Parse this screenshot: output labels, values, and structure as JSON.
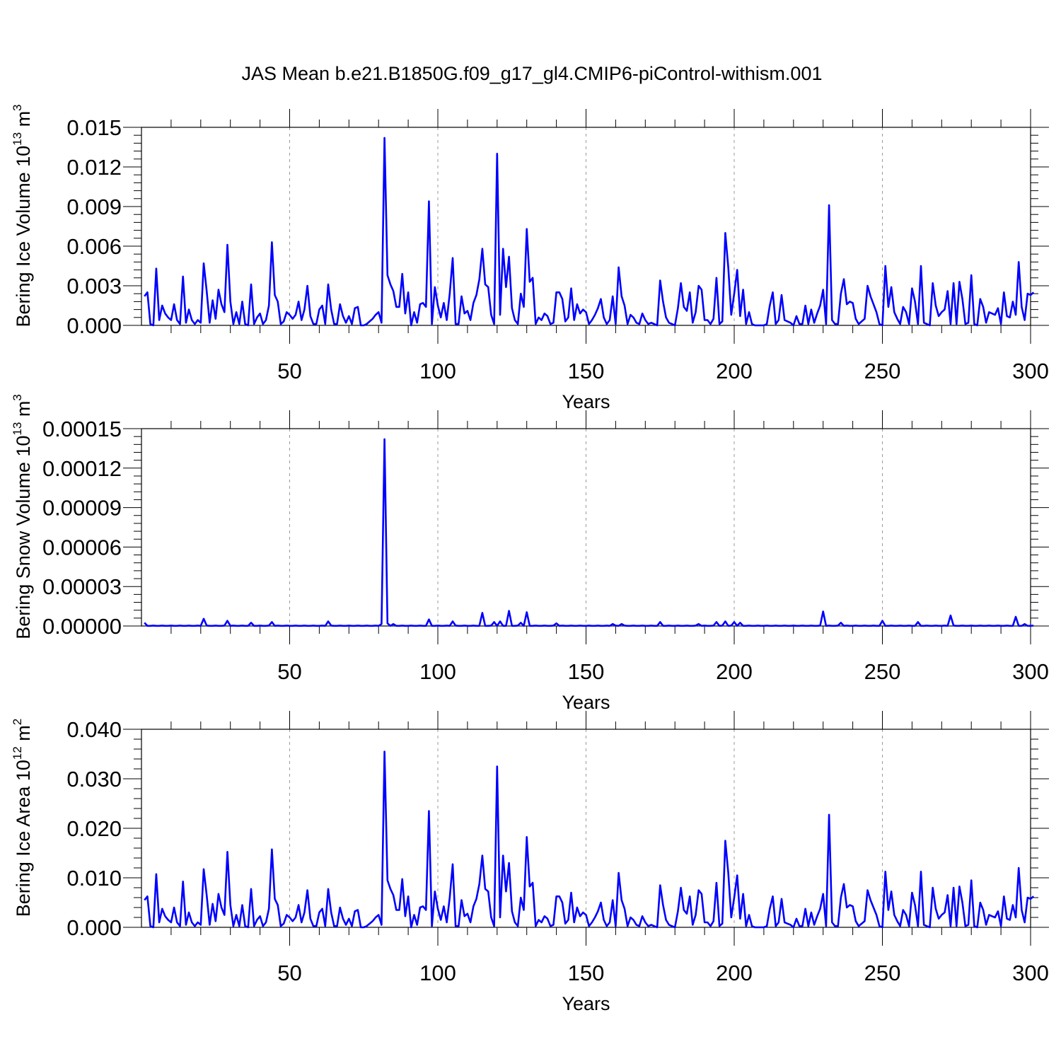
{
  "figure": {
    "title": "JAS Mean b.e21.B1850G.f09_g17_gl4.CMIP6-piControl-withism.001"
  },
  "colors": {
    "line": "#0000ff",
    "axis": "#000000",
    "grid": "#999999"
  },
  "chart_data": [
    {
      "type": "line",
      "title": "",
      "xlabel": "Years",
      "ylabel_main": "Bering Ice Volume 10",
      "ylabel_exp": "13",
      "ylabel_unit": " m",
      "ylabel_unit_exp": "3",
      "xlim": [
        0,
        300
      ],
      "ylim": [
        0,
        0.015
      ],
      "xticks": [
        50,
        100,
        150,
        200,
        250,
        300
      ],
      "yticks": [
        0.0,
        0.003,
        0.006,
        0.009,
        0.012,
        0.015
      ],
      "ytick_labels": [
        "0.000",
        "0.003",
        "0.006",
        "0.009",
        "0.012",
        "0.015"
      ],
      "grid_x": [
        50,
        100,
        150,
        200,
        250
      ],
      "series": [
        {
          "x_start": 1,
          "x_step": 1,
          "values": [
            0.0022,
            0.0025,
            0.0001,
            0.0,
            0.0043,
            0.0004,
            0.0015,
            0.0009,
            0.0006,
            0.0004,
            0.0016,
            0.0004,
            0.0001,
            0.0037,
            0.0002,
            0.0012,
            0.0004,
            0.0001,
            0.0004,
            0.0002,
            0.0047,
            0.0026,
            0.0002,
            0.0019,
            0.0005,
            0.0027,
            0.0016,
            0.001,
            0.0061,
            0.0018,
            0.0001,
            0.001,
            0.0001,
            0.0018,
            0.0001,
            0.0,
            0.0031,
            0.0001,
            0.0006,
            0.0009,
            0.0001,
            0.0004,
            0.0015,
            0.0063,
            0.0023,
            0.0018,
            0.0001,
            0.0003,
            0.001,
            0.0008,
            0.0005,
            0.0008,
            0.0018,
            0.0004,
            0.0012,
            0.003,
            0.0007,
            0.0001,
            0.0001,
            0.0012,
            0.0015,
            0.0001,
            0.0031,
            0.0012,
            0.0001,
            0.0001,
            0.0016,
            0.0007,
            0.0002,
            0.0007,
            0.0001,
            0.0013,
            0.0014,
            0.0,
            0.0,
            0.0001,
            0.0003,
            0.0005,
            0.0008,
            0.001,
            0.0002,
            0.0142,
            0.0038,
            0.0031,
            0.0026,
            0.0014,
            0.0014,
            0.0039,
            0.0009,
            0.0025,
            0.0,
            0.001,
            0.0002,
            0.0016,
            0.0017,
            0.0014,
            0.0094,
            0.0001,
            0.0029,
            0.0015,
            0.0006,
            0.0017,
            0.0004,
            0.0024,
            0.0051,
            0.0001,
            0.0001,
            0.0022,
            0.0009,
            0.0011,
            0.0004,
            0.0017,
            0.0023,
            0.0035,
            0.0058,
            0.0031,
            0.0029,
            0.0008,
            0.0001,
            0.013,
            0.0008,
            0.0058,
            0.0029,
            0.0052,
            0.0013,
            0.0004,
            0.0001,
            0.0024,
            0.0014,
            0.0073,
            0.0033,
            0.0036,
            0.0001,
            0.0006,
            0.0004,
            0.0009,
            0.0007,
            0.0001,
            0.0002,
            0.0025,
            0.0025,
            0.002,
            0.0003,
            0.0006,
            0.0028,
            0.0004,
            0.0016,
            0.0009,
            0.0012,
            0.001,
            0.0001,
            0.0004,
            0.0008,
            0.0013,
            0.002,
            0.0006,
            0.0001,
            0.0004,
            0.0022,
            0.0001,
            0.0044,
            0.0022,
            0.0015,
            0.0001,
            0.0008,
            0.0006,
            0.0002,
            0.0001,
            0.0009,
            0.0004,
            0.0001,
            0.0002,
            0.0001,
            0.0,
            0.0034,
            0.0018,
            0.0006,
            0.0002,
            0.0001,
            0.0,
            0.0013,
            0.0032,
            0.0014,
            0.0011,
            0.0025,
            0.0002,
            0.001,
            0.003,
            0.0027,
            0.0004,
            0.0004,
            0.0001,
            0.0005,
            0.0036,
            0.0001,
            0.0003,
            0.007,
            0.0044,
            0.0008,
            0.0024,
            0.0042,
            0.0007,
            0.0027,
            0.0001,
            0.001,
            0.0001,
            0.0,
            0.0,
            0.0,
            0.0,
            0.0001,
            0.0015,
            0.0025,
            0.0001,
            0.0004,
            0.0023,
            0.0004,
            0.0003,
            0.0002,
            0.0,
            0.0007,
            0.0001,
            0.0001,
            0.0015,
            0.0001,
            0.0012,
            0.0002,
            0.0009,
            0.0015,
            0.0027,
            0.0001,
            0.0091,
            0.0004,
            0.0001,
            0.0001,
            0.0024,
            0.0035,
            0.0016,
            0.0018,
            0.0017,
            0.0005,
            0.0001,
            0.0003,
            0.0005,
            0.003,
            0.0022,
            0.0016,
            0.001,
            0.0001,
            0.0,
            0.0045,
            0.0014,
            0.0029,
            0.001,
            0.0005,
            0.0001,
            0.0014,
            0.001,
            0.0001,
            0.0028,
            0.0018,
            0.0001,
            0.0045,
            0.0002,
            0.0001,
            0.0,
            0.0032,
            0.0015,
            0.0007,
            0.001,
            0.0012,
            0.0026,
            0.0001,
            0.0032,
            0.0001,
            0.0033,
            0.002,
            0.0001,
            0.0002,
            0.0038,
            0.0001,
            0.0,
            0.002,
            0.0014,
            0.0002,
            0.001,
            0.0009,
            0.0008,
            0.0013,
            0.0001,
            0.0025,
            0.0007,
            0.0006,
            0.0018,
            0.0008,
            0.0048,
            0.0014,
            0.0004,
            0.0024,
            0.0023,
            0.0025
          ]
        }
      ]
    },
    {
      "type": "line",
      "title": "",
      "xlabel": "Years",
      "ylabel_main": "Bering Snow Volume 10",
      "ylabel_exp": "13",
      "ylabel_unit": " m",
      "ylabel_unit_exp": "3",
      "xlim": [
        0,
        300
      ],
      "ylim": [
        0,
        0.00015
      ],
      "xticks": [
        50,
        100,
        150,
        200,
        250,
        300
      ],
      "yticks": [
        0,
        3e-05,
        6e-05,
        9e-05,
        0.00012,
        0.00015
      ],
      "ytick_labels": [
        "0.00000",
        "0.00003",
        "0.00006",
        "0.00009",
        "0.00012",
        "0.00015"
      ],
      "grid_x": [
        50,
        100,
        150,
        200,
        250
      ],
      "series": [
        {
          "x_start": 1,
          "x_step": 1,
          "spikes": [
            [
              1,
              2.5e-06
            ],
            [
              21,
              5.5e-06
            ],
            [
              29,
              4e-06
            ],
            [
              37,
              2.5e-06
            ],
            [
              44,
              3e-06
            ],
            [
              63,
              3.5e-06
            ],
            [
              81,
              1.5e-06
            ],
            [
              82,
              0.000142
            ],
            [
              83,
              2e-06
            ],
            [
              85,
              1.5e-06
            ],
            [
              97,
              5e-06
            ],
            [
              105,
              3.5e-06
            ],
            [
              115,
              1e-05
            ],
            [
              119,
              3e-06
            ],
            [
              121,
              3.5e-06
            ],
            [
              124,
              1.15e-05
            ],
            [
              128,
              2.5e-06
            ],
            [
              130,
              1.05e-05
            ],
            [
              140,
              2e-06
            ],
            [
              159,
              1.5e-06
            ],
            [
              162,
              1.5e-06
            ],
            [
              175,
              3e-06
            ],
            [
              188,
              1.5e-06
            ],
            [
              194,
              3e-06
            ],
            [
              197,
              3.5e-06
            ],
            [
              200,
              3e-06
            ],
            [
              202,
              2.5e-06
            ],
            [
              230,
              1.1e-05
            ],
            [
              236,
              2.5e-06
            ],
            [
              250,
              4e-06
            ],
            [
              262,
              3e-06
            ],
            [
              273,
              8e-06
            ],
            [
              295,
              7e-06
            ],
            [
              298,
              1.5e-06
            ]
          ],
          "n": 301
        }
      ]
    },
    {
      "type": "line",
      "title": "",
      "xlabel": "Years",
      "ylabel_main": "Bering Ice Area 10",
      "ylabel_exp": "12",
      "ylabel_unit": " m",
      "ylabel_unit_exp": "2",
      "xlim": [
        0,
        300
      ],
      "ylim": [
        0,
        0.04
      ],
      "xticks": [
        50,
        100,
        150,
        200,
        250,
        300
      ],
      "yticks": [
        0.0,
        0.01,
        0.02,
        0.03,
        0.04
      ],
      "ytick_labels": [
        "0.000",
        "0.010",
        "0.020",
        "0.030",
        "0.040"
      ],
      "grid_x": [
        50,
        100,
        150,
        200,
        250
      ],
      "series": [
        {
          "x_start": 1,
          "x_step": 1,
          "scale_from_first": 2.5,
          "values": []
        }
      ]
    }
  ]
}
